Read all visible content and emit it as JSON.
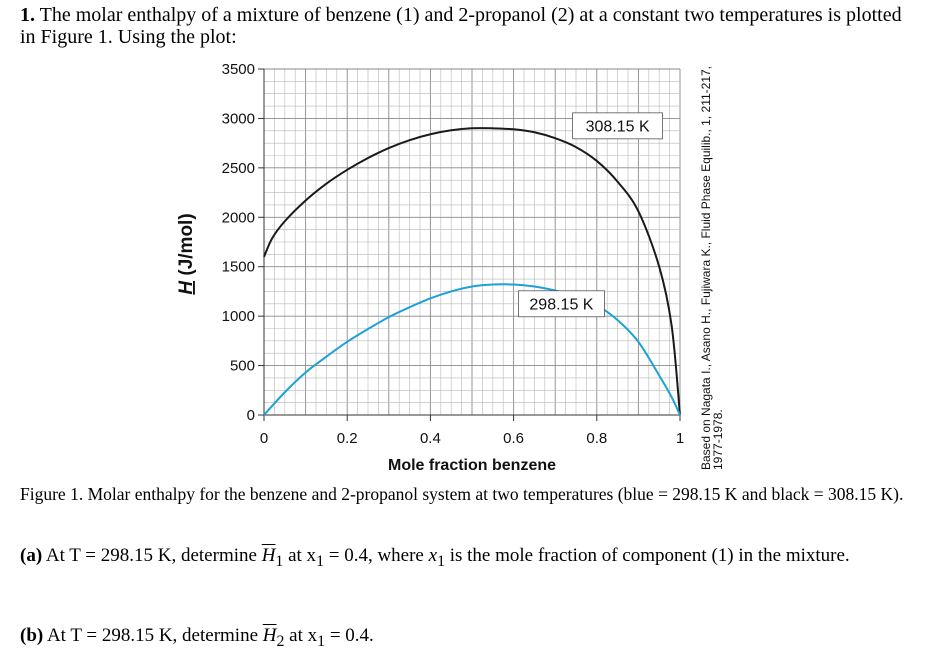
{
  "problem": {
    "number": "1.",
    "stem": "The molar enthalpy of a mixture of benzene (1) and 2-propanol (2) at a constant two temperatures is plotted in Figure 1. Using the plot:"
  },
  "chart_data": {
    "type": "line",
    "xlabel": "Mole fraction benzene",
    "ylabel": "H (J/mol)",
    "xlim": [
      0,
      1
    ],
    "ylim": [
      0,
      3500
    ],
    "x_ticks": [
      "0",
      "0.2",
      "0.4",
      "0.6",
      "0.8",
      "1"
    ],
    "y_ticks": [
      "0",
      "500",
      "1000",
      "1500",
      "2000",
      "2500",
      "3000",
      "3500"
    ],
    "grid": true,
    "series": [
      {
        "name": "308.15 K",
        "color": "#1a1a1a",
        "x": [
          0,
          0.02,
          0.05,
          0.1,
          0.15,
          0.2,
          0.25,
          0.3,
          0.35,
          0.4,
          0.45,
          0.5,
          0.55,
          0.6,
          0.65,
          0.7,
          0.75,
          0.8,
          0.85,
          0.9,
          0.95,
          0.98,
          1.0
        ],
        "y": [
          1600,
          1790,
          1960,
          2170,
          2340,
          2480,
          2600,
          2700,
          2780,
          2840,
          2880,
          2900,
          2900,
          2890,
          2860,
          2800,
          2710,
          2570,
          2360,
          2060,
          1500,
          900,
          0
        ]
      },
      {
        "name": "298.15 K",
        "color": "#1ea0d8",
        "x": [
          0,
          0.05,
          0.1,
          0.15,
          0.2,
          0.25,
          0.3,
          0.35,
          0.4,
          0.45,
          0.5,
          0.55,
          0.6,
          0.65,
          0.7,
          0.75,
          0.8,
          0.85,
          0.9,
          0.95,
          0.98,
          1.0
        ],
        "y": [
          0,
          230,
          430,
          590,
          740,
          870,
          990,
          1090,
          1180,
          1250,
          1300,
          1320,
          1320,
          1300,
          1260,
          1200,
          1110,
          960,
          740,
          400,
          180,
          0
        ]
      }
    ],
    "annotations": [
      "308.15 K",
      "298.15 K"
    ],
    "source_note": "Based on Nagata I., Asano H., Fujiwara K., Fluid Phase Equilib., 1, 211-217, 1977-1978."
  },
  "caption": "Figure 1. Molar enthalpy for the benzene and 2-propanol system at two temperatures (blue = 298.15 K and black = 308.15 K).",
  "part_a": {
    "label": "(a)",
    "text_1": "At T = 298.15 K, determine",
    "symbol": "H",
    "subscript": "1",
    "text_2": "at x",
    "text_3": "= 0.4, where",
    "var": "x",
    "var_sub": "1",
    "text_4": "is the mole fraction of component (1) in the mixture."
  },
  "part_b": {
    "label": "(b)",
    "text_1": "At T = 298.15 K, determine",
    "symbol": "H",
    "subscript": "2",
    "text_2": "at x",
    "text_3": "= 0.4."
  }
}
